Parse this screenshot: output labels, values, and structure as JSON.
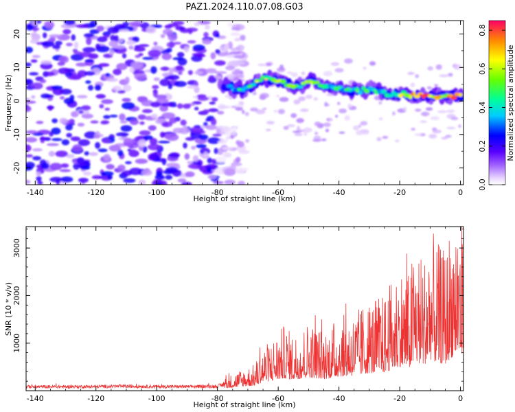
{
  "title": "PAZ1.2024.110.07.08.G03",
  "chart_data": [
    {
      "type": "heatmap",
      "xlabel": "Height of straight line (km)",
      "ylabel": "Frequency (Hz)",
      "xlim": [
        -143,
        1
      ],
      "ylim": [
        -25,
        24
      ],
      "x_ticks": [
        -140,
        -120,
        -100,
        -80,
        -60,
        -40,
        -20,
        0
      ],
      "y_ticks": [
        -20,
        -10,
        0,
        10,
        20
      ],
      "grid": false,
      "colorbar": {
        "label": "Normalized spectral amplitude",
        "range": [
          0.0,
          0.85
        ],
        "ticks": [
          "0.0",
          "0.2",
          "0.4",
          "0.6",
          "0.8"
        ]
      },
      "ridge": {
        "x": [
          -78,
          -74,
          -70,
          -66,
          -62,
          -58,
          -54,
          -50,
          -46,
          -42,
          -38,
          -34,
          -30,
          -26,
          -22,
          -18,
          -14,
          -10,
          -6,
          -2,
          0
        ],
        "frequency": [
          4.5,
          3.5,
          3.5,
          6.5,
          6.5,
          5.5,
          4.0,
          6.0,
          5.0,
          4.0,
          3.5,
          3.0,
          3.5,
          2.5,
          2.0,
          2.0,
          1.5,
          1.5,
          1.5,
          1.5,
          1.5
        ],
        "amplitude": [
          0.25,
          0.4,
          0.45,
          0.6,
          0.62,
          0.55,
          0.5,
          0.55,
          0.5,
          0.45,
          0.42,
          0.48,
          0.45,
          0.45,
          0.55,
          0.6,
          0.8,
          0.7,
          0.65,
          0.75,
          0.7
        ]
      },
      "noise_region": {
        "x": [
          -143,
          -79
        ],
        "amplitude": 0.15
      }
    },
    {
      "type": "line",
      "xlabel": "Height of straight line (km)",
      "ylabel": "SNR (10 * v/v)",
      "xlim": [
        -143,
        1
      ],
      "ylim": [
        0,
        3450
      ],
      "x_ticks": [
        -140,
        -120,
        -100,
        -80,
        -60,
        -40,
        -20,
        0
      ],
      "y_ticks": [
        1000,
        2000,
        3000
      ],
      "grid": false,
      "series": [
        {
          "color": "#ee3333",
          "x": [
            -143,
            -130,
            -120,
            -110,
            -100,
            -90,
            -80,
            -76,
            -72,
            -68,
            -65,
            -62,
            -58,
            -55,
            -50,
            -45,
            -40,
            -35,
            -30,
            -25,
            -20,
            -17,
            -15,
            -12,
            -10,
            -8,
            -5,
            -3,
            -1,
            0
          ],
          "y": [
            90,
            90,
            95,
            100,
            95,
            90,
            100,
            180,
            250,
            300,
            500,
            600,
            750,
            650,
            800,
            700,
            850,
            900,
            1050,
            1100,
            1450,
            1350,
            1700,
            1550,
            1900,
            1700,
            1600,
            2000,
            2200,
            2000
          ]
        }
      ]
    }
  ]
}
